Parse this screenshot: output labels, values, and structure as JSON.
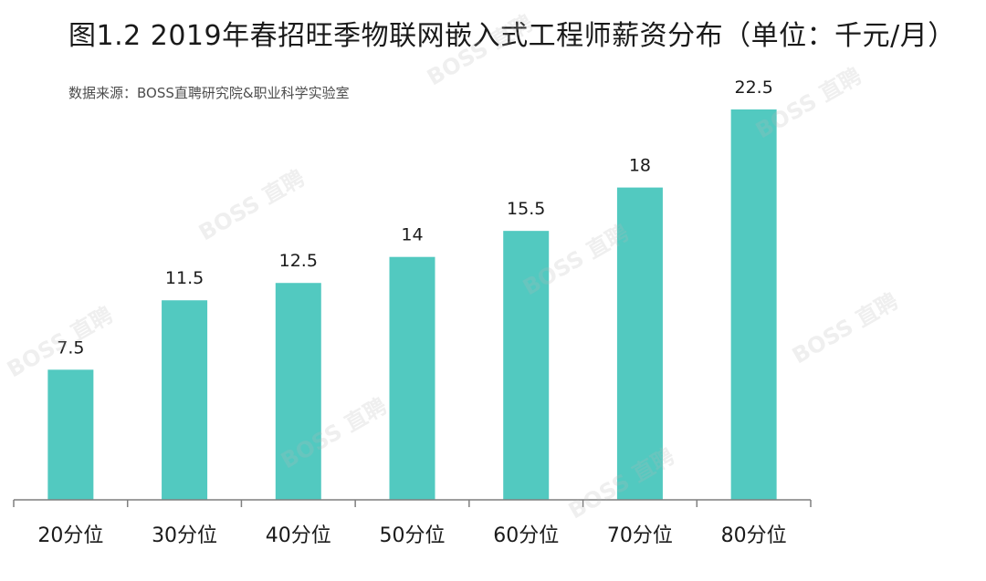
{
  "title": "图1.2  2019年春招旺季物联网嵌入式工程师薪资分布（单位：千元/月）",
  "source": "数据来源：BOSS直聘研究院&职业科学实验室",
  "watermark_text": "BOSS 直聘",
  "colors": {
    "bar": "#52C9C0",
    "axis": "#7f7f7f",
    "text": "#1a1a1a"
  },
  "chart_data": {
    "type": "bar",
    "title": "图1.2  2019年春招旺季物联网嵌入式工程师薪资分布（单位：千元/月）",
    "categories": [
      "20分位",
      "30分位",
      "40分位",
      "50分位",
      "60分位",
      "70分位",
      "80分位"
    ],
    "values": [
      7.5,
      11.5,
      12.5,
      14,
      15.5,
      18,
      22.5
    ],
    "data_labels": [
      "7.5",
      "11.5",
      "12.5",
      "14",
      "15.5",
      "18",
      "22.5"
    ],
    "xlabel": "",
    "ylabel": "",
    "ylim": [
      0,
      22.5
    ],
    "grid": false,
    "legend": "none"
  }
}
